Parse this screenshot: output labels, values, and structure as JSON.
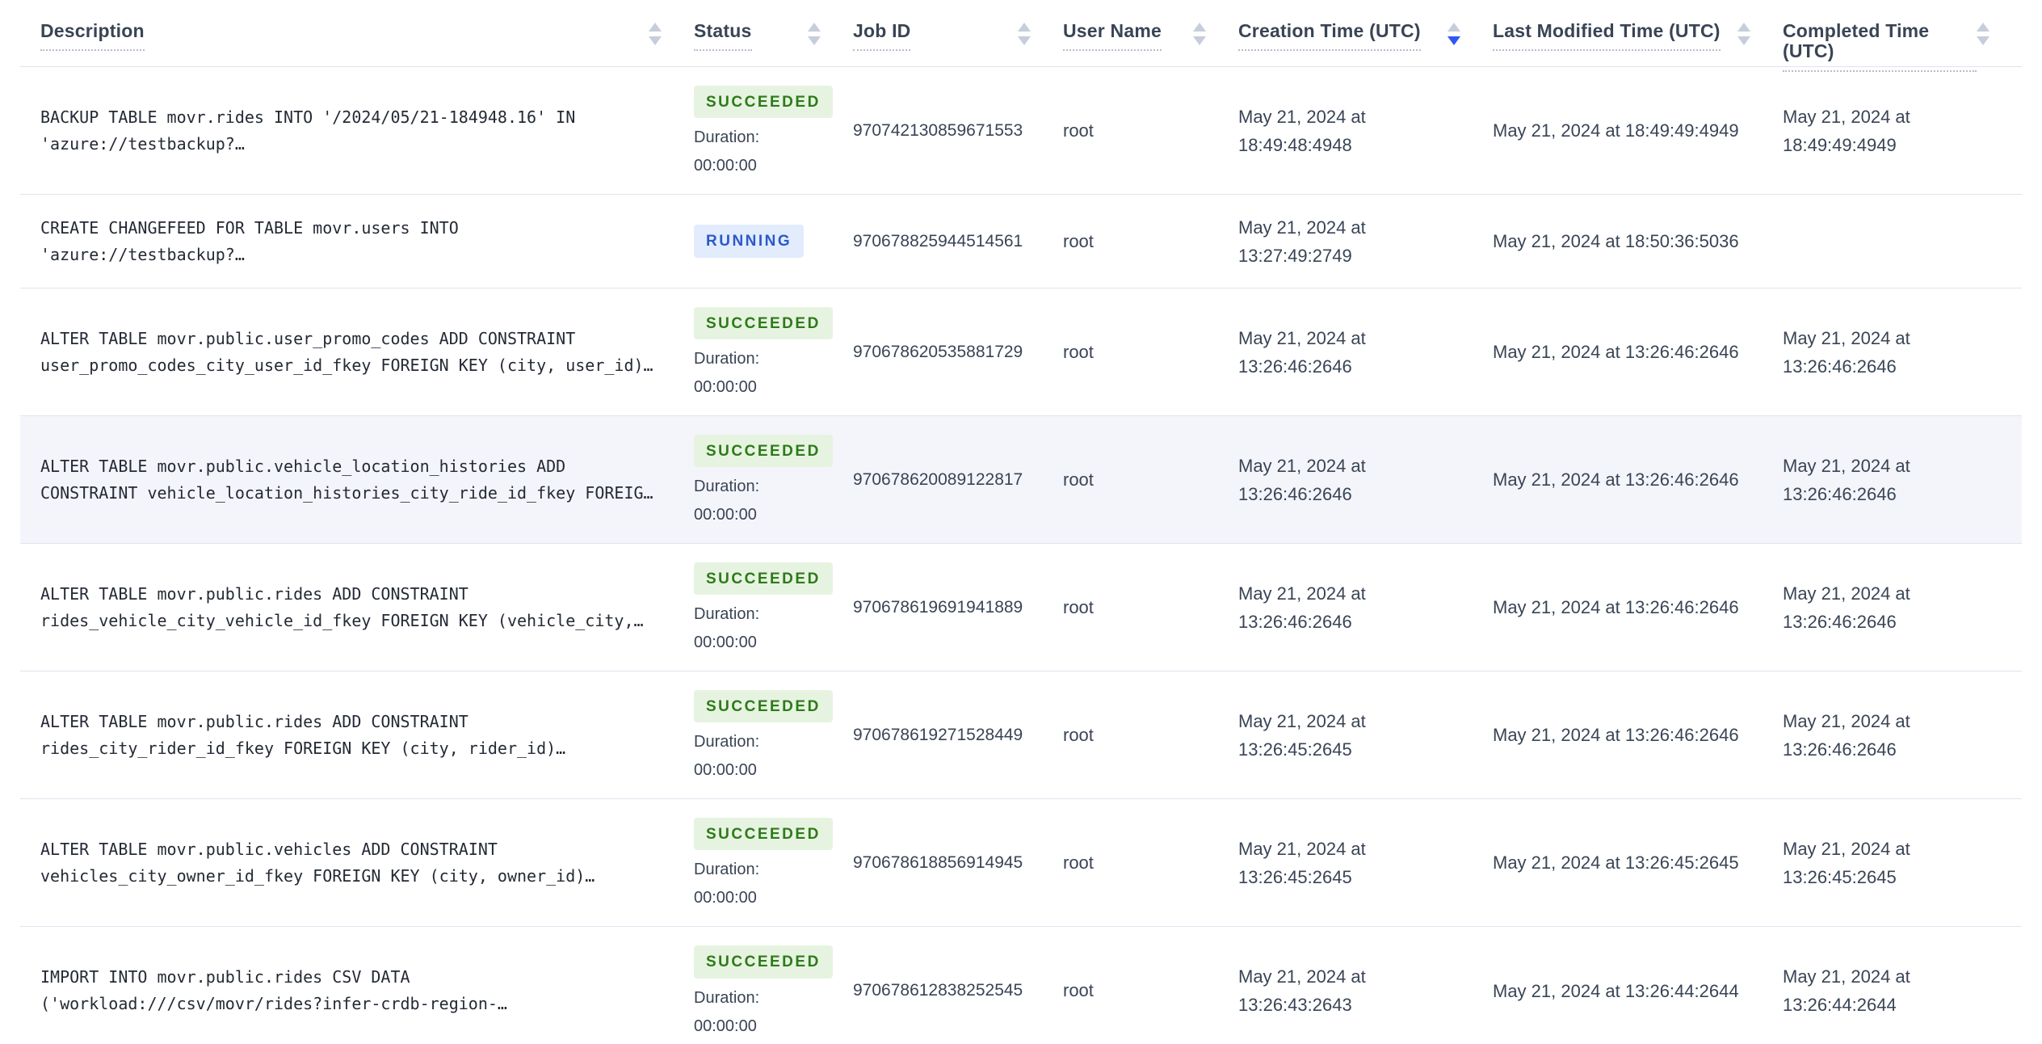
{
  "table": {
    "columns": [
      {
        "id": "description",
        "label": "Description",
        "sort": "none"
      },
      {
        "id": "status",
        "label": "Status",
        "sort": "none"
      },
      {
        "id": "job_id",
        "label": "Job ID",
        "sort": "none"
      },
      {
        "id": "user_name",
        "label": "User Name",
        "sort": "none"
      },
      {
        "id": "creation_time",
        "label": "Creation Time (UTC)",
        "sort": "desc"
      },
      {
        "id": "last_modified",
        "label": "Last Modified Time (UTC)",
        "sort": "none"
      },
      {
        "id": "completed_time",
        "label": "Completed Time (UTC)",
        "sort": "none"
      }
    ],
    "duration_label": "Duration:",
    "rows": [
      {
        "description": "BACKUP TABLE movr.rides INTO '/2024/05/21-184948.16' IN\n'azure://testbackup?…",
        "status": "SUCCEEDED",
        "duration": "00:00:00",
        "job_id": "970742130859671553",
        "user_name": "root",
        "creation_time": "May 21, 2024 at 18:49:48:4948",
        "last_modified_time": "May 21, 2024 at 18:49:49:4949",
        "completed_time": "May 21, 2024 at 18:49:49:4949"
      },
      {
        "description": "CREATE CHANGEFEED FOR TABLE movr.users INTO\n'azure://testbackup?…",
        "status": "RUNNING",
        "duration": "",
        "job_id": "970678825944514561",
        "user_name": "root",
        "creation_time": "May 21, 2024 at 13:27:49:2749",
        "last_modified_time": "May 21, 2024 at 18:50:36:5036",
        "completed_time": ""
      },
      {
        "description": "ALTER TABLE movr.public.user_promo_codes ADD CONSTRAINT\nuser_promo_codes_city_user_id_fkey FOREIGN KEY (city, user_id)…",
        "status": "SUCCEEDED",
        "duration": "00:00:00",
        "job_id": "970678620535881729",
        "user_name": "root",
        "creation_time": "May 21, 2024 at 13:26:46:2646",
        "last_modified_time": "May 21, 2024 at 13:26:46:2646",
        "completed_time": "May 21, 2024 at 13:26:46:2646"
      },
      {
        "description": "ALTER TABLE movr.public.vehicle_location_histories ADD\nCONSTRAINT vehicle_location_histories_city_ride_id_fkey FOREIG…",
        "status": "SUCCEEDED",
        "duration": "00:00:00",
        "job_id": "970678620089122817",
        "user_name": "root",
        "creation_time": "May 21, 2024 at 13:26:46:2646",
        "last_modified_time": "May 21, 2024 at 13:26:46:2646",
        "completed_time": "May 21, 2024 at 13:26:46:2646",
        "highlighted": true
      },
      {
        "description": "ALTER TABLE movr.public.rides ADD CONSTRAINT\nrides_vehicle_city_vehicle_id_fkey FOREIGN KEY (vehicle_city,…",
        "status": "SUCCEEDED",
        "duration": "00:00:00",
        "job_id": "970678619691941889",
        "user_name": "root",
        "creation_time": "May 21, 2024 at 13:26:46:2646",
        "last_modified_time": "May 21, 2024 at 13:26:46:2646",
        "completed_time": "May 21, 2024 at 13:26:46:2646"
      },
      {
        "description": "ALTER TABLE movr.public.rides ADD CONSTRAINT\nrides_city_rider_id_fkey FOREIGN KEY (city, rider_id)…",
        "status": "SUCCEEDED",
        "duration": "00:00:00",
        "job_id": "970678619271528449",
        "user_name": "root",
        "creation_time": "May 21, 2024 at 13:26:45:2645",
        "last_modified_time": "May 21, 2024 at 13:26:46:2646",
        "completed_time": "May 21, 2024 at 13:26:46:2646"
      },
      {
        "description": "ALTER TABLE movr.public.vehicles ADD CONSTRAINT\nvehicles_city_owner_id_fkey FOREIGN KEY (city, owner_id)…",
        "status": "SUCCEEDED",
        "duration": "00:00:00",
        "job_id": "970678618856914945",
        "user_name": "root",
        "creation_time": "May 21, 2024 at 13:26:45:2645",
        "last_modified_time": "May 21, 2024 at 13:26:45:2645",
        "completed_time": "May 21, 2024 at 13:26:45:2645"
      },
      {
        "description": "IMPORT INTO movr.public.rides CSV DATA\n('workload:///csv/movr/rides?infer-crdb-region-…",
        "status": "SUCCEEDED",
        "duration": "00:00:00",
        "job_id": "970678612838252545",
        "user_name": "root",
        "creation_time": "May 21, 2024 at 13:26:43:2643",
        "last_modified_time": "May 21, 2024 at 13:26:44:2644",
        "completed_time": "May 21, 2024 at 13:26:44:2644"
      }
    ],
    "colors": {
      "succeeded_bg": "#e7f3e1",
      "succeeded_text": "#2c7b18",
      "running_bg": "#e2ecfd",
      "running_text": "#2b59c8",
      "sort_active": "#3057f5",
      "row_highlight": "#f4f5fa",
      "divider": "#e0e4ee"
    }
  }
}
